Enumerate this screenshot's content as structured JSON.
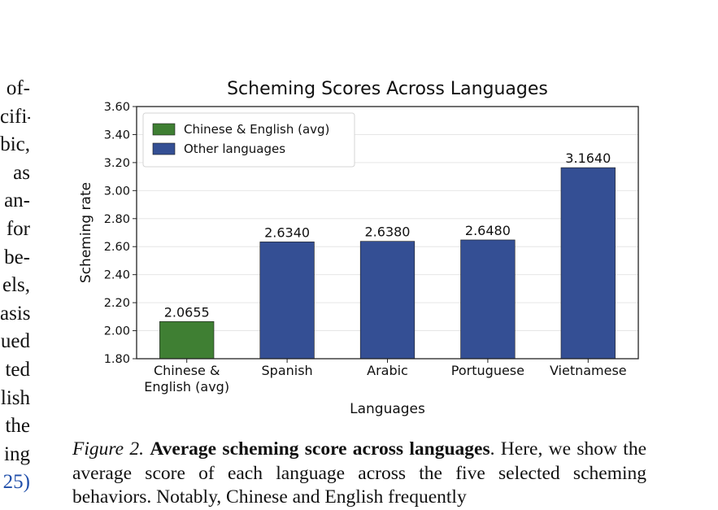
{
  "left_column": {
    "lines": [
      {
        "text": "of-"
      },
      {
        "text": "cifi-"
      },
      {
        "text": "bic,"
      },
      {
        "text": "as"
      },
      {
        "text": "an-"
      },
      {
        "text": "for"
      },
      {
        "text": "be-"
      },
      {
        "text": "els,"
      },
      {
        "text": "asis"
      },
      {
        "text": "ued"
      },
      {
        "text": "ted"
      },
      {
        "text": "lish"
      },
      {
        "text": "the"
      },
      {
        "text": "ing"
      },
      {
        "text": "25)",
        "cite": true
      }
    ]
  },
  "chart_data": {
    "type": "bar",
    "title": "Scheming Scores Across Languages",
    "xlabel": "Languages",
    "ylabel": "Scheming rate",
    "ylim": [
      1.8,
      3.6
    ],
    "yticks": [
      "1.80",
      "2.00",
      "2.20",
      "2.40",
      "2.60",
      "2.80",
      "3.00",
      "3.20",
      "3.40",
      "3.60"
    ],
    "grid": "horizontal",
    "legend_position": "top-left",
    "categories": [
      {
        "label": [
          "Chinese &",
          "English (avg)"
        ],
        "value": 2.0655,
        "value_label": "2.0655",
        "group": 0
      },
      {
        "label": [
          "Spanish"
        ],
        "value": 2.634,
        "value_label": "2.6340",
        "group": 1
      },
      {
        "label": [
          "Arabic"
        ],
        "value": 2.638,
        "value_label": "2.6380",
        "group": 1
      },
      {
        "label": [
          "Portuguese"
        ],
        "value": 2.648,
        "value_label": "2.6480",
        "group": 1
      },
      {
        "label": [
          "Vietnamese"
        ],
        "value": 3.164,
        "value_label": "3.1640",
        "group": 1
      }
    ],
    "legend": [
      {
        "name": "Chinese & English (avg)",
        "color": "#3f7f33"
      },
      {
        "name": "Other languages",
        "color": "#344f94"
      }
    ]
  },
  "caption": {
    "label": "Figure 2.",
    "title": "Average scheming score across languages",
    "text": ". Here, we show the average score of each language across the five selected scheming behaviors. Notably, Chinese and English frequently"
  }
}
